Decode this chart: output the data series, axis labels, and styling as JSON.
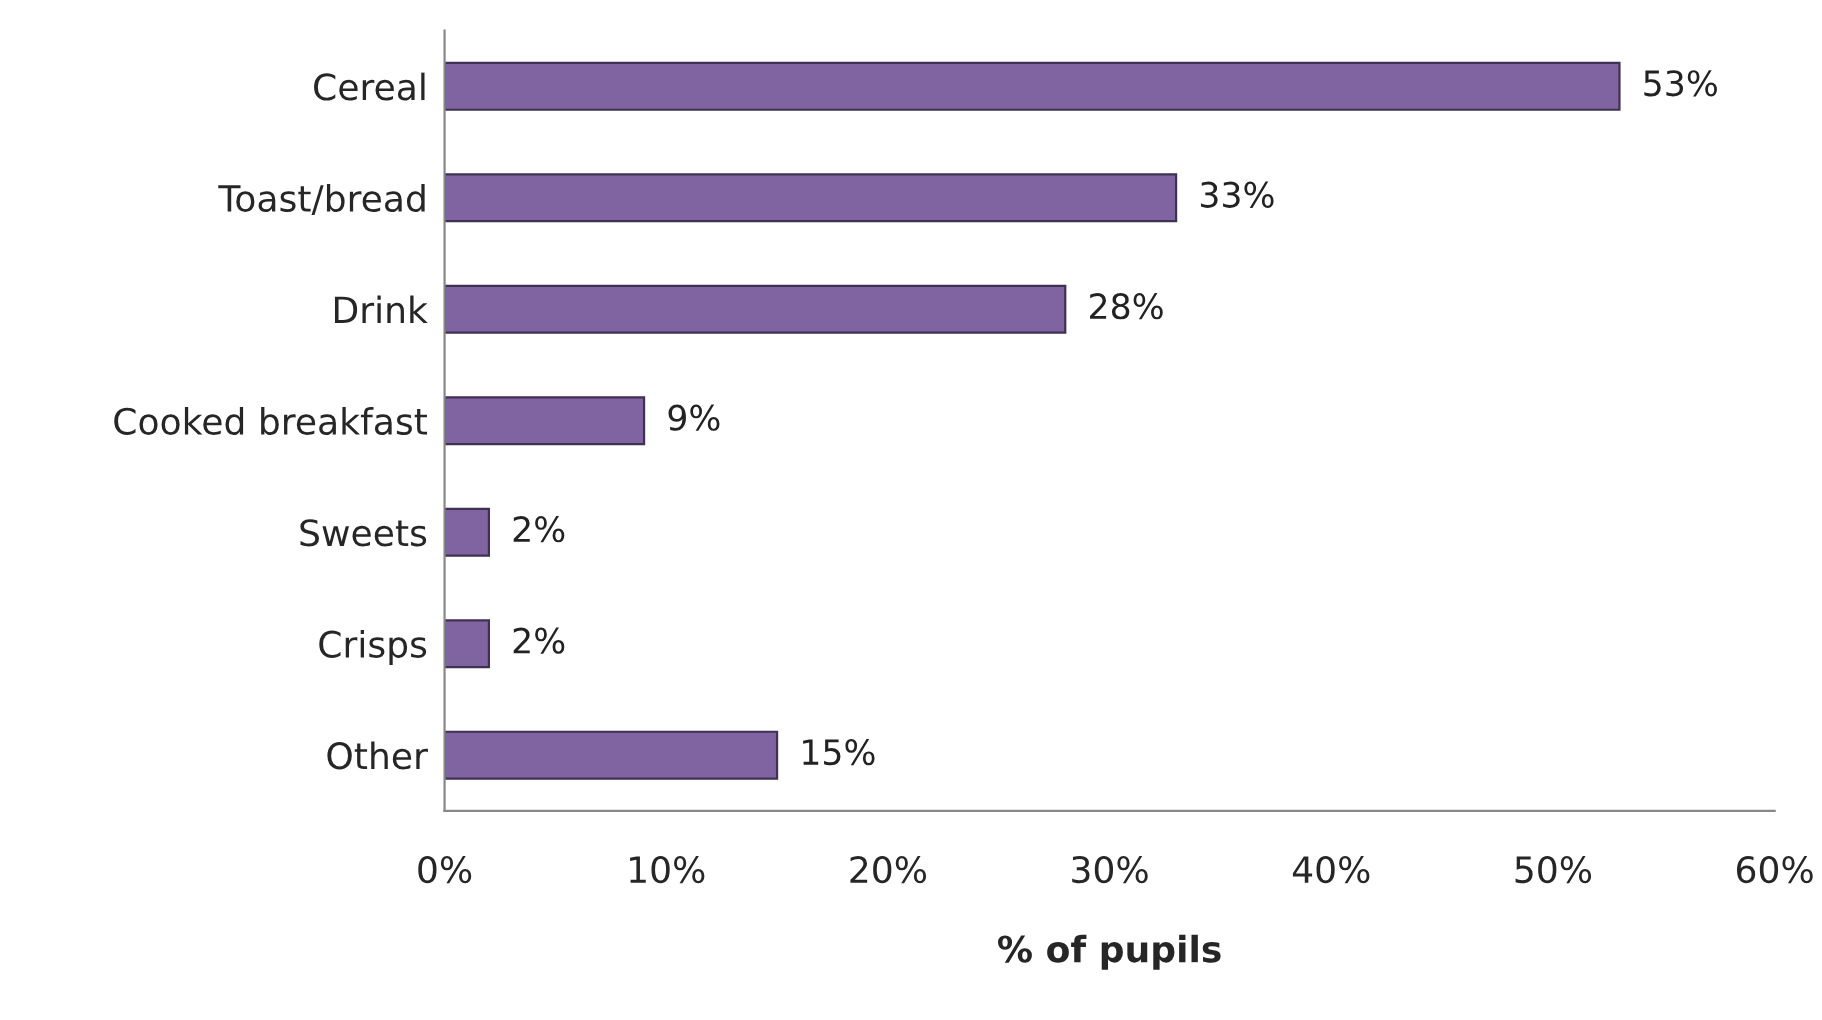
{
  "chart_data": {
    "type": "bar",
    "orientation": "horizontal",
    "xlabel": "% of pupils",
    "categories": [
      "Cereal",
      "Toast/bread",
      "Drink",
      "Cooked breakfast",
      "Sweets",
      "Crisps",
      "Other"
    ],
    "values": [
      53,
      33,
      28,
      9,
      2,
      2,
      15
    ],
    "value_labels": [
      "53%",
      "33%",
      "28%",
      "9%",
      "2%",
      "2%",
      "15%"
    ],
    "color": "#8064a2",
    "xlim": [
      0,
      60
    ],
    "xticks": [
      {
        "value": 0,
        "label": "0%"
      },
      {
        "value": 10,
        "label": "10%"
      },
      {
        "value": 20,
        "label": "20%"
      },
      {
        "value": 30,
        "label": "30%"
      },
      {
        "value": 40,
        "label": "40%"
      },
      {
        "value": 50,
        "label": "50%"
      },
      {
        "value": 60,
        "label": "60%"
      }
    ],
    "grid": false,
    "legend": false
  }
}
